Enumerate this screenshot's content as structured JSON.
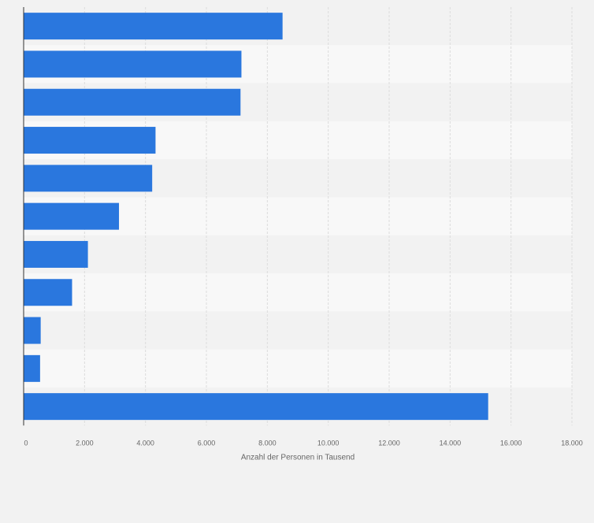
{
  "chart_data": {
    "type": "bar",
    "orientation": "horizontal",
    "categories": [
      "",
      "",
      "",
      "",
      "",
      "",
      "",
      "",
      "",
      "",
      ""
    ],
    "values": [
      8500,
      7150,
      7120,
      4330,
      4220,
      3130,
      2110,
      1590,
      560,
      540,
      15250
    ],
    "xlabel": "Anzahl der Personen in Tausend",
    "ylabel": "",
    "xlim": [
      0,
      18000
    ],
    "ticks": [
      0,
      2000,
      4000,
      6000,
      8000,
      10000,
      12000,
      14000,
      16000,
      18000
    ],
    "tick_labels": [
      "0",
      "2.000",
      "4.000",
      "6.000",
      "8.000",
      "10.000",
      "12.000",
      "14.000",
      "16.000",
      "18.000"
    ],
    "grid": true,
    "bar_color": "#2a77de"
  }
}
